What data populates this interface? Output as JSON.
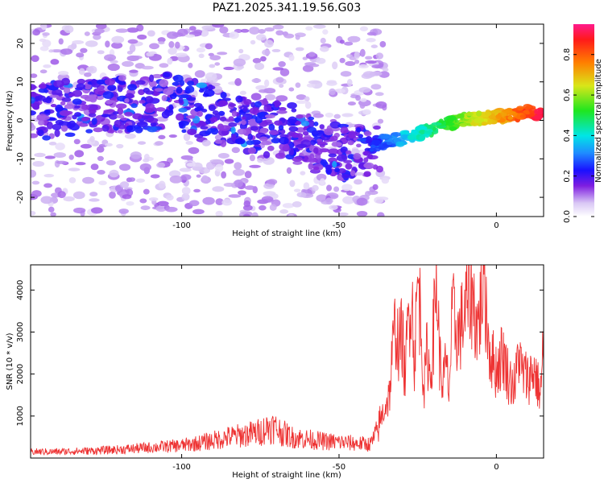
{
  "figure_title": "PAZ1.2025.341.19.56.G03",
  "chart_data": [
    {
      "type": "heatmap",
      "title": "PAZ1.2025.341.19.56.G03",
      "xlabel": "Height of straight line (km)",
      "ylabel": "Frequency (Hz)",
      "xlim": [
        -148,
        15
      ],
      "ylim": [
        -25,
        25
      ],
      "xticks": [
        -100,
        -50,
        0
      ],
      "yticks": [
        -20,
        -10,
        0,
        10,
        20
      ],
      "ridge": [
        {
          "x": -145,
          "f": 2
        },
        {
          "x": -130,
          "f": 4
        },
        {
          "x": -115,
          "f": 4
        },
        {
          "x": -105,
          "f": 5
        },
        {
          "x": -95,
          "f": 3
        },
        {
          "x": -85,
          "f": 0
        },
        {
          "x": -75,
          "f": -2
        },
        {
          "x": -65,
          "f": -3
        },
        {
          "x": -55,
          "f": -7
        },
        {
          "x": -45,
          "f": -9
        },
        {
          "x": -38,
          "f": -6
        },
        {
          "x": -30,
          "f": -5
        },
        {
          "x": -20,
          "f": -2
        },
        {
          "x": -10,
          "f": 0
        },
        {
          "x": 0,
          "f": 1
        },
        {
          "x": 10,
          "f": 2
        },
        {
          "x": 15,
          "f": 2
        }
      ],
      "colorbar": {
        "label": "Normalized spectral amplitude",
        "range": [
          0.0,
          0.95
        ],
        "ticks": [
          0.0,
          0.2,
          0.4,
          0.6,
          0.8
        ]
      }
    },
    {
      "type": "line",
      "xlabel": "Height of straight line (km)",
      "ylabel": "SNR (10 * v/v)",
      "xlim": [
        -148,
        15
      ],
      "ylim": [
        0,
        4600
      ],
      "xticks": [
        -100,
        -50,
        0
      ],
      "yticks": [
        1000,
        2000,
        3000,
        4000
      ],
      "color": "#ee3333",
      "series": [
        {
          "name": "SNR",
          "x": [
            -148,
            -140,
            -130,
            -120,
            -110,
            -100,
            -95,
            -90,
            -85,
            -80,
            -75,
            -72,
            -70,
            -68,
            -65,
            -60,
            -55,
            -50,
            -45,
            -40,
            -38,
            -36,
            -34,
            -33,
            -32,
            -31,
            -30,
            -29,
            -28,
            -27,
            -26,
            -25,
            -24,
            -23,
            -22,
            -21,
            -20,
            -19,
            -18,
            -17,
            -16,
            -15,
            -14,
            -12,
            -10,
            -8,
            -6,
            -5,
            -4,
            -3,
            -2,
            0,
            2,
            4,
            6,
            7,
            8,
            10,
            12,
            14,
            15
          ],
          "y": [
            150,
            150,
            170,
            200,
            250,
            300,
            350,
            420,
            500,
            550,
            620,
            750,
            700,
            600,
            500,
            450,
            400,
            380,
            350,
            330,
            600,
            1100,
            1500,
            2500,
            3200,
            2600,
            3000,
            1900,
            3300,
            4100,
            2300,
            4250,
            3300,
            1600,
            2600,
            1900,
            3000,
            4300,
            2300,
            1800,
            2200,
            1600,
            3400,
            2900,
            3500,
            4000,
            3100,
            3600,
            4550,
            3300,
            2500,
            2100,
            2500,
            1900,
            1700,
            2600,
            2050,
            1900,
            2100,
            1500,
            2700
          ]
        }
      ]
    }
  ]
}
